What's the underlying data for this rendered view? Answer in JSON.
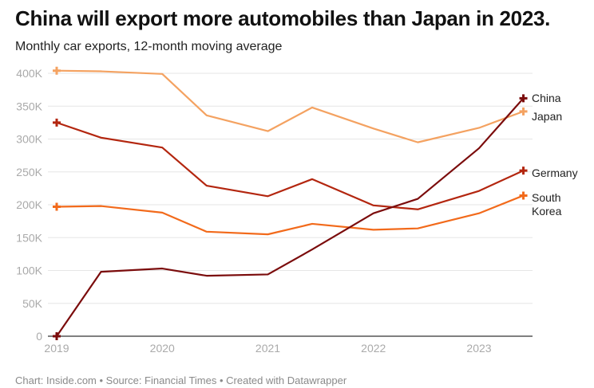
{
  "chart_data": {
    "type": "line",
    "title": "China will export more automobiles than Japan in 2023.",
    "subtitle": "Monthly car exports, 12-month moving average",
    "footer": "Chart: Inside.com • Source: Financial Times • Created with Datawrapper",
    "x": [
      2019.0,
      2019.42,
      2020.0,
      2020.42,
      2021.0,
      2021.42,
      2022.0,
      2022.42,
      2023.0,
      2023.42
    ],
    "xticks": [
      "2019",
      "2020",
      "2021",
      "2022",
      "2023"
    ],
    "yticks": [
      "0",
      "50K",
      "100K",
      "150K",
      "200K",
      "250K",
      "300K",
      "350K",
      "400K"
    ],
    "ylim": [
      0,
      400000
    ],
    "grid": true,
    "legend": "direct labels at line ends (right)",
    "series": [
      {
        "name": "Japan",
        "color": "#f4a261",
        "values": [
          404000,
          403000,
          399000,
          336000,
          312000,
          348000,
          316000,
          295000,
          317000,
          342000
        ]
      },
      {
        "name": "Germany",
        "color": "#b3260f",
        "values": [
          325000,
          302000,
          287000,
          229000,
          213000,
          239000,
          199000,
          193000,
          221000,
          252000
        ]
      },
      {
        "name": "South Korea",
        "color": "#f26a1b",
        "values": [
          197000,
          198000,
          188000,
          159000,
          155000,
          171000,
          162000,
          164000,
          187000,
          214000
        ]
      },
      {
        "name": "China",
        "color": "#7b0c0c",
        "values": [
          0,
          98000,
          103000,
          92000,
          94000,
          132000,
          187000,
          209000,
          286000,
          362000
        ]
      }
    ]
  }
}
